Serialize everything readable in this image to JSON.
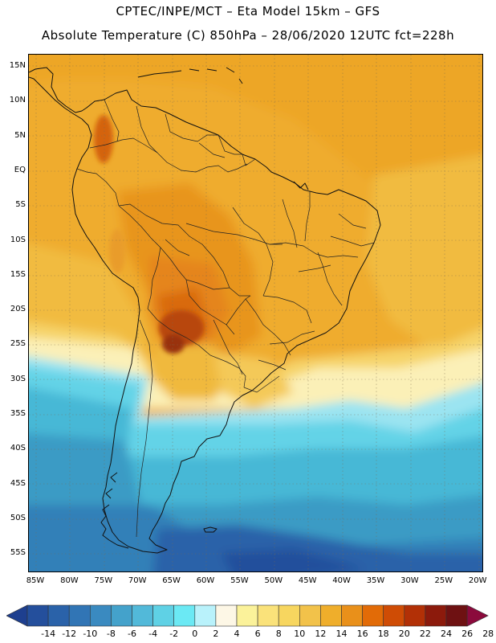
{
  "header": {
    "line1": "CPTEC/INPE/MCT –  Eta Model 15km – GFS",
    "line2": "Absolute Temperature (C) 850hPa – 28/06/2020 12UTC fct=228h"
  },
  "map": {
    "lat_labels": [
      "15N",
      "10N",
      "5N",
      "EQ",
      "5S",
      "10S",
      "15S",
      "20S",
      "25S",
      "30S",
      "35S",
      "40S",
      "45S",
      "50S",
      "55S"
    ],
    "lon_labels": [
      "85W",
      "80W",
      "75W",
      "70W",
      "65W",
      "60W",
      "55W",
      "50W",
      "45W",
      "40W",
      "35W",
      "30W",
      "25W",
      "20W"
    ],
    "extent": {
      "lon_min": -87,
      "lon_max": -20,
      "lat_max": 16,
      "lat_min": -58
    }
  },
  "colorbar": {
    "ticks": [
      "-14",
      "-12",
      "-10",
      "-8",
      "-6",
      "-4",
      "-2",
      "0",
      "2",
      "4",
      "6",
      "8",
      "10",
      "12",
      "14",
      "16",
      "18",
      "20",
      "22",
      "24",
      "26",
      "28"
    ],
    "colors": [
      "#1e3f8f",
      "#244f9c",
      "#2a62a9",
      "#3175b5",
      "#3a8ac0",
      "#44a2cb",
      "#52b9d9",
      "#5fd1e5",
      "#6be9f4",
      "#b9f2fb",
      "#fdf7e6",
      "#fbf29a",
      "#fae27a",
      "#f7d65f",
      "#f2c24a",
      "#efae2b",
      "#e9901a",
      "#e26b07",
      "#cf4c05",
      "#b23006",
      "#8c1a0c",
      "#6e1112",
      "#8b0a3c"
    ]
  }
}
